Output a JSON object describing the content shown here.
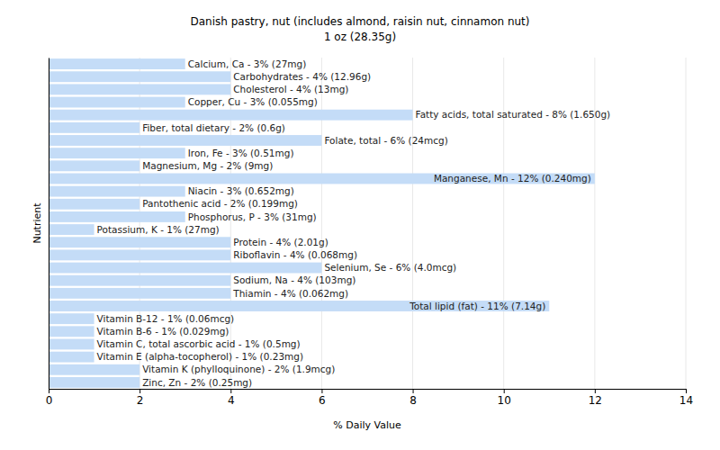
{
  "chart_data": {
    "type": "bar",
    "orientation": "horizontal",
    "title": "Danish pastry, nut (includes almond, raisin nut, cinnamon nut)",
    "subtitle": "1 oz (28.35g)",
    "x_label": "% Daily Value",
    "y_label": "Nutrient",
    "categories": [
      "Calcium, Ca - 3% (27mg)",
      "Carbohydrates - 4% (12.96g)",
      "Cholesterol - 4% (13mg)",
      "Copper, Cu - 3% (0.055mg)",
      "Fatty acids, total saturated - 8% (1.650g)",
      "Fiber, total dietary - 2% (0.6g)",
      "Folate, total - 6% (24mcg)",
      "Iron, Fe - 3% (0.51mg)",
      "Magnesium, Mg - 2% (9mg)",
      "Manganese, Mn - 12% (0.240mg)",
      "Niacin - 3% (0.652mg)",
      "Pantothenic acid - 2% (0.199mg)",
      "Phosphorus, P - 3% (31mg)",
      "Potassium, K - 1% (27mg)",
      "Protein - 4% (2.01g)",
      "Riboflavin - 4% (0.068mg)",
      "Selenium, Se - 6% (4.0mcg)",
      "Sodium, Na - 4% (103mg)",
      "Thiamin - 4% (0.062mg)",
      "Total lipid (fat) - 11% (7.14g)",
      "Vitamin B-12 - 1% (0.06mcg)",
      "Vitamin B-6 - 1% (0.029mg)",
      "Vitamin C, total ascorbic acid - 1% (0.5mg)",
      "Vitamin E (alpha-tocopherol) - 1% (0.23mg)",
      "Vitamin K (phylloquinone) - 2% (1.9mcg)",
      "Zinc, Zn - 2% (0.25mg)"
    ],
    "values": [
      3,
      4,
      4,
      3,
      8,
      2,
      6,
      3,
      2,
      12,
      3,
      2,
      3,
      1,
      4,
      4,
      6,
      4,
      4,
      11,
      1,
      1,
      1,
      1,
      2,
      2
    ],
    "color": "#c4dcf7",
    "xlim": [
      0,
      14
    ],
    "xticks": [
      0,
      2,
      4,
      6,
      8,
      10,
      12,
      14
    ],
    "grid": true,
    "tick_labels": "x"
  }
}
